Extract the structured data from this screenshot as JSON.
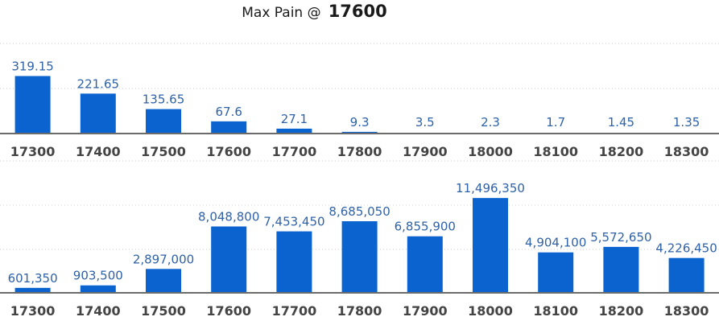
{
  "header": {
    "title_label": "Max Pain @",
    "title_value": "17600"
  },
  "chart_data": [
    {
      "type": "bar",
      "categories": [
        "17300",
        "17400",
        "17500",
        "17600",
        "17700",
        "17800",
        "17900",
        "18000",
        "18100",
        "18200",
        "18300"
      ],
      "values": [
        319.15,
        221.65,
        135.65,
        67.6,
        27.1,
        9.3,
        3.5,
        2.3,
        1.7,
        1.45,
        1.35
      ],
      "labels": [
        "319.15",
        "221.65",
        "135.65",
        "67.6",
        "27.1",
        "9.3",
        "3.5",
        "2.3",
        "1.7",
        "1.45",
        "1.35"
      ],
      "ylim": [
        0,
        500
      ],
      "grid": true,
      "color": "#0b63cf"
    },
    {
      "type": "bar",
      "categories": [
        "17300",
        "17400",
        "17500",
        "17600",
        "17700",
        "17800",
        "17900",
        "18000",
        "18100",
        "18200",
        "18300"
      ],
      "values": [
        601350,
        903500,
        2897000,
        8048800,
        7453450,
        8685050,
        6855900,
        11496350,
        4904100,
        5572650,
        4226450
      ],
      "labels": [
        "601,350",
        "903,500",
        "2,897,000",
        "8,048,800",
        "7,453,450",
        "8,685,050",
        "6,855,900",
        "11,496,350",
        "4,904,100",
        "5,572,650",
        "4,226,450"
      ],
      "ylim": [
        0,
        16000000
      ],
      "grid": true,
      "color": "#0b63cf"
    }
  ]
}
